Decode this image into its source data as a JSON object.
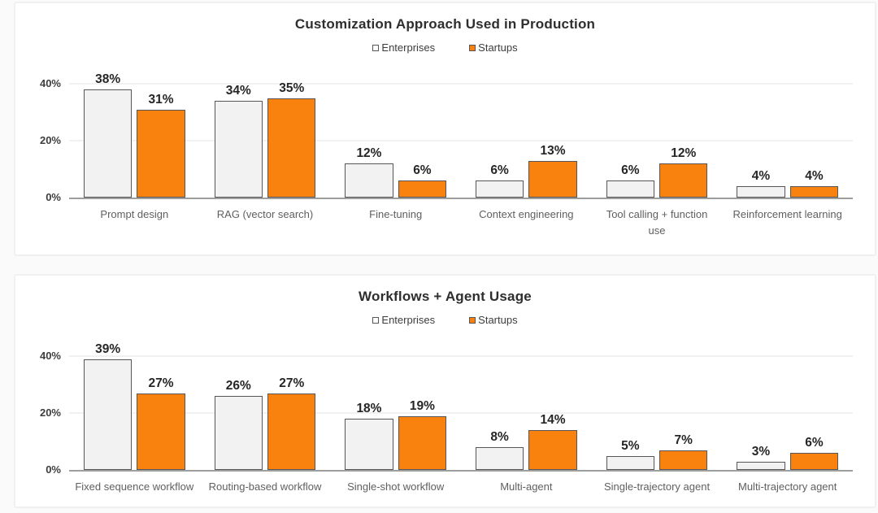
{
  "colors": {
    "enterprises_fill": "#f2f2f2",
    "startups_fill": "#f8820d",
    "bar_border": "#56565a",
    "axis_line": "#9e9e9e",
    "gridline": "#f1f1f1",
    "title_text": "#2e2e2e",
    "label_text": "#5f5f5f",
    "value_text": "#262626",
    "card_background": "#ffffff",
    "page_background": "#fafafa"
  },
  "chart_data": [
    {
      "type": "bar",
      "title": "Customization Approach Used in Production",
      "categories": [
        "Prompt design",
        "RAG (vector search)",
        "Fine-tuning",
        "Context engineering",
        "Tool calling + function use",
        "Reinforcement learning"
      ],
      "series": [
        {
          "name": "Enterprises",
          "values": [
            38,
            34,
            12,
            6,
            6,
            4
          ]
        },
        {
          "name": "Startups",
          "values": [
            31,
            35,
            6,
            13,
            12,
            4
          ]
        }
      ],
      "value_suffix": "%",
      "data_labels": true,
      "ylim": [
        0,
        40
      ],
      "yticks": [
        {
          "label": "0%",
          "value": 0
        },
        {
          "label": "20%",
          "value": 20
        },
        {
          "label": "40%",
          "value": 40
        }
      ],
      "grid": "horizontal",
      "legend_position": "top-center"
    },
    {
      "type": "bar",
      "title": "Workflows + Agent Usage",
      "categories": [
        "Fixed sequence workflow",
        "Routing-based workflow",
        "Single-shot workflow",
        "Multi-agent",
        "Single-trajectory agent",
        "Multi-trajectory agent"
      ],
      "series": [
        {
          "name": "Enterprises",
          "values": [
            39,
            26,
            18,
            8,
            5,
            3
          ]
        },
        {
          "name": "Startups",
          "values": [
            27,
            27,
            19,
            14,
            7,
            6
          ]
        }
      ],
      "value_suffix": "%",
      "data_labels": true,
      "ylim": [
        0,
        40
      ],
      "yticks": [
        {
          "label": "0%",
          "value": 0
        },
        {
          "label": "20%",
          "value": 20
        },
        {
          "label": "40%",
          "value": 40
        }
      ],
      "grid": "horizontal",
      "legend_position": "top-center"
    }
  ]
}
